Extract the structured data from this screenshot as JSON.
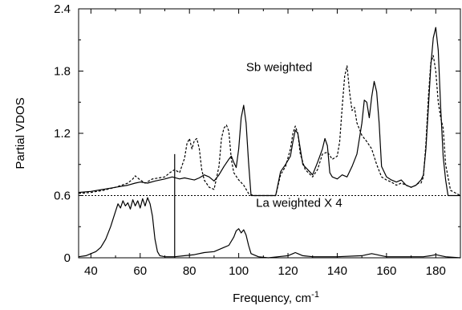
{
  "chart_data": {
    "type": "line",
    "title": "",
    "xlabel": "Frequency, cm",
    "xlabel_superscript": "-1",
    "ylabel": "Partial VDOS",
    "xlim": [
      35,
      190
    ],
    "ylim": [
      0,
      2.4
    ],
    "x_ticks": [
      40,
      60,
      80,
      100,
      120,
      140,
      160,
      180
    ],
    "y_ticks": [
      0,
      0.6,
      1.2,
      1.8,
      2.4
    ],
    "y_tick_labels": [
      "0",
      "0.6",
      "1.2",
      "1.8",
      "2.4"
    ],
    "grid": false,
    "legend": "none",
    "annotations": [
      {
        "id": "sb",
        "text": "Sb weighted",
        "x": 103,
        "y": 1.8
      },
      {
        "id": "la",
        "text": "La weighted X 4",
        "x": 107,
        "y": 0.49
      }
    ],
    "reference_lines": [
      {
        "type": "horizontal",
        "y": 0.6,
        "style": "dotted"
      },
      {
        "type": "vertical",
        "x": 74,
        "y_from": 0,
        "y_to": 1.0,
        "style": "solid"
      }
    ],
    "series": [
      {
        "id": "sb_solid",
        "style": "solid",
        "x": [
          35,
          40,
          45,
          50,
          55,
          58,
          60,
          63,
          66,
          70,
          73,
          76,
          78,
          80,
          82,
          84,
          86,
          88,
          90,
          92,
          94,
          96,
          97,
          98,
          99,
          100,
          101,
          102,
          103,
          104,
          105,
          106,
          108,
          110,
          115,
          117,
          119,
          121,
          122,
          123,
          124,
          126,
          128,
          130,
          132,
          134,
          135,
          136,
          137,
          138,
          140,
          142,
          144,
          146,
          148,
          150,
          151,
          152,
          153,
          154,
          155,
          156,
          157,
          158,
          160,
          162,
          164,
          166,
          168,
          170,
          172,
          174,
          175,
          176,
          177,
          178,
          179,
          180,
          181,
          182,
          183,
          184,
          185,
          190
        ],
        "y": [
          0.63,
          0.64,
          0.66,
          0.68,
          0.7,
          0.72,
          0.73,
          0.72,
          0.74,
          0.76,
          0.78,
          0.76,
          0.77,
          0.76,
          0.75,
          0.77,
          0.8,
          0.78,
          0.74,
          0.8,
          0.88,
          0.95,
          0.98,
          0.92,
          0.87,
          1.05,
          1.35,
          1.47,
          1.3,
          0.92,
          0.6,
          0.6,
          0.6,
          0.6,
          0.6,
          0.83,
          0.9,
          0.98,
          1.12,
          1.23,
          1.2,
          0.9,
          0.85,
          0.8,
          0.92,
          1.05,
          1.15,
          1.08,
          0.82,
          0.78,
          0.76,
          0.8,
          0.78,
          0.88,
          1.0,
          1.3,
          1.52,
          1.5,
          1.35,
          1.55,
          1.7,
          1.6,
          1.3,
          0.88,
          0.78,
          0.75,
          0.73,
          0.75,
          0.7,
          0.68,
          0.7,
          0.75,
          0.8,
          1.05,
          1.45,
          1.85,
          2.12,
          2.22,
          2.0,
          1.45,
          0.98,
          0.75,
          0.6,
          0.6
        ]
      },
      {
        "id": "sb_dashed",
        "style": "dashed",
        "x": [
          35,
          40,
          45,
          50,
          55,
          57,
          58,
          60,
          62,
          65,
          70,
          72,
          74,
          76,
          78,
          79,
          80,
          81,
          82,
          83,
          84,
          85,
          86,
          88,
          90,
          92,
          93,
          94,
          95,
          96,
          97,
          98,
          100,
          102,
          104,
          106,
          110,
          115,
          117,
          119,
          121,
          122,
          123,
          124,
          125,
          127,
          130,
          132,
          134,
          136,
          138,
          140,
          141,
          142,
          143,
          144,
          145,
          146,
          147,
          148,
          150,
          152,
          154,
          156,
          158,
          160,
          162,
          164,
          166,
          168,
          170,
          172,
          173,
          174,
          175,
          176,
          177,
          178,
          179,
          180,
          181,
          182,
          183,
          184,
          186,
          190
        ],
        "y": [
          0.62,
          0.63,
          0.65,
          0.68,
          0.72,
          0.76,
          0.79,
          0.75,
          0.72,
          0.76,
          0.78,
          0.82,
          0.85,
          0.82,
          0.96,
          1.1,
          1.15,
          1.05,
          1.13,
          1.15,
          1.05,
          0.85,
          0.75,
          0.68,
          0.66,
          0.88,
          1.15,
          1.25,
          1.28,
          1.22,
          0.95,
          0.82,
          0.75,
          0.7,
          0.62,
          0.6,
          0.6,
          0.6,
          0.8,
          0.88,
          1.05,
          1.2,
          1.27,
          1.2,
          1.0,
          0.85,
          0.78,
          0.85,
          1.0,
          1.02,
          0.95,
          0.98,
          1.12,
          1.45,
          1.75,
          1.85,
          1.6,
          1.42,
          1.45,
          1.3,
          1.18,
          1.12,
          1.05,
          0.9,
          0.78,
          0.75,
          0.73,
          0.7,
          0.72,
          0.7,
          0.68,
          0.7,
          0.72,
          0.72,
          0.78,
          1.1,
          1.55,
          1.88,
          1.95,
          1.8,
          1.5,
          1.35,
          1.25,
          0.9,
          0.65,
          0.6
        ]
      },
      {
        "id": "la_solid",
        "style": "solid",
        "x": [
          35,
          38,
          40,
          42,
          44,
          46,
          48,
          50,
          51,
          52,
          53,
          54,
          55,
          56,
          57,
          58,
          59,
          60,
          61,
          62,
          63,
          64,
          65,
          66,
          67,
          68,
          70,
          74,
          78,
          82,
          86,
          90,
          94,
          96,
          98,
          99,
          100,
          101,
          102,
          103,
          104,
          105,
          108,
          112,
          116,
          120,
          122,
          123,
          124,
          126,
          130,
          140,
          150,
          152,
          154,
          156,
          158,
          160,
          170,
          175,
          178,
          180,
          182,
          184,
          190
        ],
        "y": [
          0.01,
          0.02,
          0.04,
          0.06,
          0.1,
          0.18,
          0.3,
          0.45,
          0.52,
          0.48,
          0.55,
          0.5,
          0.53,
          0.47,
          0.56,
          0.5,
          0.55,
          0.48,
          0.57,
          0.5,
          0.58,
          0.52,
          0.4,
          0.18,
          0.06,
          0.02,
          0.01,
          0.01,
          0.02,
          0.03,
          0.05,
          0.06,
          0.1,
          0.12,
          0.2,
          0.26,
          0.28,
          0.24,
          0.27,
          0.22,
          0.12,
          0.04,
          0.01,
          0.0,
          0.01,
          0.02,
          0.04,
          0.05,
          0.04,
          0.02,
          0.01,
          0.01,
          0.02,
          0.03,
          0.04,
          0.03,
          0.02,
          0.01,
          0.01,
          0.01,
          0.02,
          0.03,
          0.02,
          0.01,
          0.0
        ]
      }
    ]
  }
}
